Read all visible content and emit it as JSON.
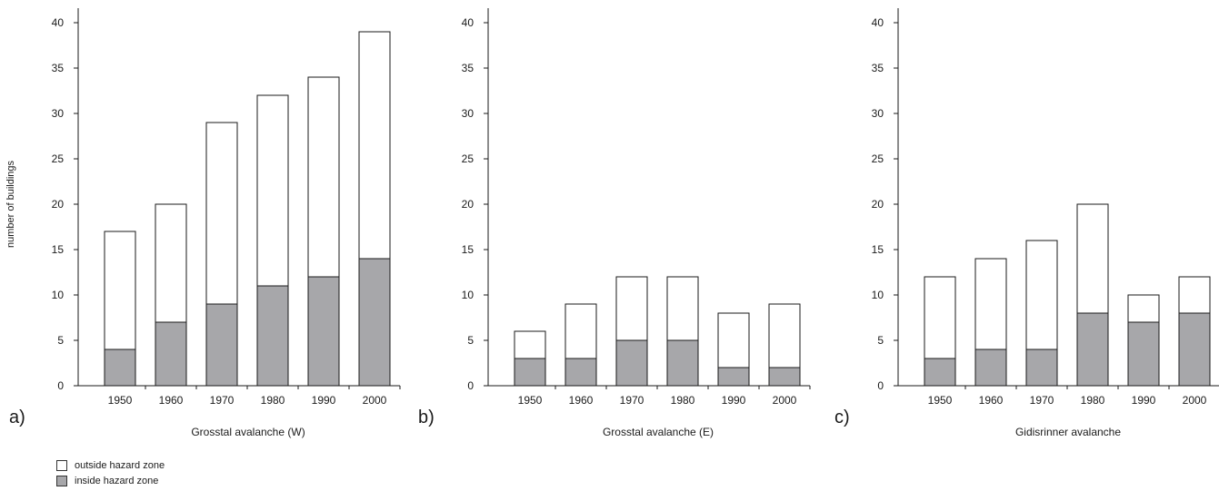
{
  "chart_data": [
    {
      "type": "bar",
      "stacked": true,
      "panel_label": "a)",
      "xlabel": "Grosstal avalanche (W)",
      "ylabel": "number of buildings",
      "ylim": [
        0,
        40
      ],
      "yticks": [
        "0",
        "5",
        "10",
        "15",
        "20",
        "25",
        "30",
        "35",
        "40"
      ],
      "categories": [
        "1950",
        "1960",
        "1970",
        "1980",
        "1990",
        "2000"
      ],
      "series": [
        {
          "name": "inside hazard zone",
          "values": [
            4,
            7,
            9,
            11,
            12,
            14
          ]
        },
        {
          "name": "outside hazard zone",
          "values": [
            13,
            13,
            20,
            21,
            22,
            25
          ]
        }
      ],
      "totals": [
        17,
        20,
        29,
        32,
        34,
        39
      ]
    },
    {
      "type": "bar",
      "stacked": true,
      "panel_label": "b)",
      "xlabel": "Grosstal avalanche (E)",
      "ylabel": "",
      "ylim": [
        0,
        40
      ],
      "yticks": [
        "0",
        "5",
        "10",
        "15",
        "20",
        "25",
        "30",
        "35",
        "40"
      ],
      "categories": [
        "1950",
        "1960",
        "1970",
        "1980",
        "1990",
        "2000"
      ],
      "series": [
        {
          "name": "inside hazard zone",
          "values": [
            3,
            3,
            5,
            5,
            2,
            2
          ]
        },
        {
          "name": "outside hazard zone",
          "values": [
            3,
            6,
            7,
            7,
            6,
            7
          ]
        }
      ],
      "totals": [
        6,
        9,
        12,
        12,
        8,
        9
      ]
    },
    {
      "type": "bar",
      "stacked": true,
      "panel_label": "c)",
      "xlabel": "Gidisrinner avalanche",
      "ylabel": "",
      "ylim": [
        0,
        40
      ],
      "yticks": [
        "0",
        "5",
        "10",
        "15",
        "20",
        "25",
        "30",
        "35",
        "40"
      ],
      "categories": [
        "1950",
        "1960",
        "1970",
        "1980",
        "1990",
        "2000"
      ],
      "series": [
        {
          "name": "inside hazard zone",
          "values": [
            3,
            4,
            4,
            8,
            7,
            8
          ]
        },
        {
          "name": "outside hazard zone",
          "values": [
            9,
            10,
            12,
            12,
            3,
            4
          ]
        }
      ],
      "totals": [
        12,
        14,
        16,
        20,
        10,
        12
      ]
    }
  ],
  "legend": [
    {
      "label": "outside hazard zone",
      "color": "#ffffff"
    },
    {
      "label": "inside hazard zone",
      "color": "#a7a7aa"
    }
  ],
  "colors": {
    "inside": "#a7a7aa",
    "outside": "#ffffff",
    "stroke": "#1a1a1a"
  }
}
